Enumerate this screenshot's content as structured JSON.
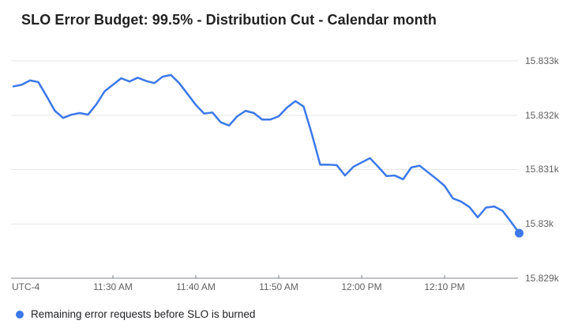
{
  "colors": {
    "line": "#3b78e8",
    "end_dot": "#3b78e8",
    "grid": "#e6e6e6",
    "axis": "#80868b",
    "tick_label": "#616161",
    "title": "#212121",
    "legend_text": "#202124",
    "background": "#ffffff"
  },
  "chart_data": {
    "type": "line",
    "title": "SLO Error Budget: 99.5% - Distribution Cut - Calendar month",
    "xlabel": "",
    "ylabel": "",
    "x_axis_note": "UTC-4",
    "grid": "horizontal",
    "legend_position": "bottom-left",
    "end_marker": true,
    "ylim": [
      15829,
      15833
    ],
    "y_ticks": [
      {
        "value": 15833,
        "label": "15.833k"
      },
      {
        "value": 15832,
        "label": "15.832k"
      },
      {
        "value": 15831,
        "label": "15.831k"
      },
      {
        "value": 15830,
        "label": "15.83k"
      },
      {
        "value": 15829,
        "label": "15.829k"
      }
    ],
    "x_ticks": [
      {
        "time": "11:30 AM",
        "label": "11:30 AM"
      },
      {
        "time": "11:40 AM",
        "label": "11:40 AM"
      },
      {
        "time": "11:50 AM",
        "label": "11:50 AM"
      },
      {
        "time": "12:00 PM",
        "label": "12:00 PM"
      },
      {
        "time": "12:10 PM",
        "label": "12:10 PM"
      }
    ],
    "x": [
      "11:18 AM",
      "11:19 AM",
      "11:20 AM",
      "11:21 AM",
      "11:22 AM",
      "11:23 AM",
      "11:24 AM",
      "11:25 AM",
      "11:26 AM",
      "11:27 AM",
      "11:28 AM",
      "11:29 AM",
      "11:30 AM",
      "11:31 AM",
      "11:32 AM",
      "11:33 AM",
      "11:34 AM",
      "11:35 AM",
      "11:36 AM",
      "11:37 AM",
      "11:38 AM",
      "11:39 AM",
      "11:40 AM",
      "11:41 AM",
      "11:42 AM",
      "11:43 AM",
      "11:44 AM",
      "11:45 AM",
      "11:46 AM",
      "11:47 AM",
      "11:48 AM",
      "11:49 AM",
      "11:50 AM",
      "11:51 AM",
      "11:52 AM",
      "11:53 AM",
      "11:54 AM",
      "11:55 AM",
      "11:56 AM",
      "11:57 AM",
      "11:58 AM",
      "11:59 AM",
      "12:00 PM",
      "12:01 PM",
      "12:02 PM",
      "12:03 PM",
      "12:04 PM",
      "12:05 PM",
      "12:06 PM",
      "12:07 PM",
      "12:08 PM",
      "12:09 PM",
      "12:10 PM",
      "12:11 PM",
      "12:12 PM",
      "12:13 PM",
      "12:14 PM",
      "12:15 PM",
      "12:16 PM",
      "12:17 PM",
      "12:18 PM",
      "12:19 PM"
    ],
    "series": [
      {
        "name": "Remaining error requests before SLO is burned",
        "color": "#3b78e8",
        "values": [
          15832.53,
          15832.56,
          15832.64,
          15832.61,
          15832.35,
          15832.08,
          15831.95,
          15832.01,
          15832.04,
          15832.01,
          15832.2,
          15832.44,
          15832.56,
          15832.68,
          15832.62,
          15832.69,
          15832.63,
          15832.59,
          15832.71,
          15832.74,
          15832.59,
          15832.39,
          15832.19,
          15832.03,
          15832.05,
          15831.87,
          15831.81,
          15831.98,
          15832.08,
          15832.04,
          15831.92,
          15831.92,
          15831.98,
          15832.14,
          15832.26,
          15832.16,
          15831.65,
          15831.09,
          15831.09,
          15831.08,
          15830.89,
          15831.05,
          15831.13,
          15831.21,
          15831.05,
          15830.88,
          15830.89,
          15830.82,
          15831.04,
          15831.07,
          15830.95,
          15830.83,
          15830.7,
          15830.47,
          15830.41,
          15830.31,
          15830.12,
          15830.3,
          15830.32,
          15830.24,
          15830.04,
          15829.83
        ]
      }
    ]
  }
}
